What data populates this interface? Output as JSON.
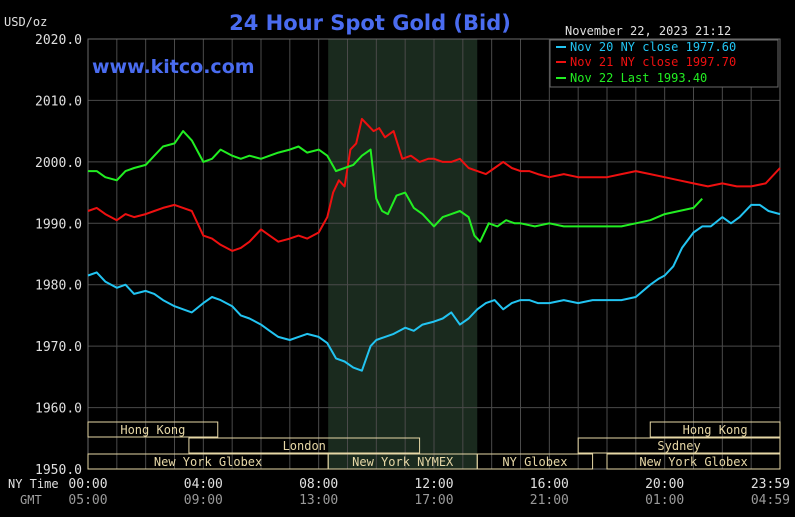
{
  "header": {
    "unit_label": "USD/oz",
    "title": "24 Hour Spot Gold (Bid)",
    "timestamp": "November 22, 2023 21:12",
    "watermark": "www.kitco.com"
  },
  "axis": {
    "nytime_label": "NY Time",
    "gmt_label": "GMT",
    "x_ticks": [
      {
        "x": 0,
        "ny": "00:00",
        "gmt": "05:00"
      },
      {
        "x": 4,
        "ny": "04:00",
        "gmt": "09:00"
      },
      {
        "x": 8,
        "ny": "08:00",
        "gmt": "13:00"
      },
      {
        "x": 12,
        "ny": "12:00",
        "gmt": "17:00"
      },
      {
        "x": 16,
        "ny": "16:00",
        "gmt": "21:00"
      },
      {
        "x": 20,
        "ny": "20:00",
        "gmt": "01:00"
      },
      {
        "x": 23.983,
        "ny": "23:59",
        "gmt": "04:59"
      }
    ],
    "y_ticks": [
      {
        "v": 1950,
        "label": "1950.0"
      },
      {
        "v": 1960,
        "label": "1960.0"
      },
      {
        "v": 1970,
        "label": "1970.0"
      },
      {
        "v": 1980,
        "label": "1980.0"
      },
      {
        "v": 1990,
        "label": "1990.0"
      },
      {
        "v": 2000,
        "label": "2000.0"
      },
      {
        "v": 2010,
        "label": "2010.0"
      },
      {
        "v": 2020,
        "label": "2020.0"
      }
    ]
  },
  "sessions": [
    {
      "label": "Hong Kong",
      "start": 0,
      "end": 4.5,
      "row": 0
    },
    {
      "label": "Hong Kong",
      "start": 19.5,
      "end": 24,
      "row": 0
    },
    {
      "label": "London",
      "start": 3.5,
      "end": 11.5,
      "row": 1
    },
    {
      "label": "Sydney",
      "start": 17.0,
      "end": 24,
      "row": 1
    },
    {
      "label": "New York Globex",
      "start": 0,
      "end": 8.33,
      "row": 2
    },
    {
      "label": "New York NYMEX",
      "start": 8.33,
      "end": 13.5,
      "row": 2
    },
    {
      "label": "NY Globex",
      "start": 13.5,
      "end": 17.5,
      "row": 2
    },
    {
      "label": "New York Globex",
      "start": 18.0,
      "end": 24,
      "row": 2
    }
  ],
  "colors": {
    "background": "#000000",
    "grid": "#4a4a4a",
    "shade": "#1a2a1e",
    "session_box": "#e6d7a6",
    "title": "#4a6cf0",
    "watermark": "#4a6cf0",
    "text": "#e0e0e0"
  },
  "chart_data": {
    "type": "line",
    "title": "24 Hour Spot Gold (Bid)",
    "ylabel": "USD/oz",
    "xlabel": "NY Time",
    "xlim": [
      0,
      24
    ],
    "ylim": [
      1950,
      2020
    ],
    "grid": true,
    "shaded_region": [
      8.33,
      13.5
    ],
    "legend_position": "top-right",
    "series": [
      {
        "name": "Nov 20 NY close 1977.60",
        "color": "#22c4f2",
        "x": [
          0,
          0.3,
          0.6,
          1.0,
          1.3,
          1.6,
          2.0,
          2.3,
          2.6,
          3.0,
          3.3,
          3.6,
          4.0,
          4.3,
          4.6,
          5.0,
          5.3,
          5.6,
          6.0,
          6.3,
          6.6,
          7.0,
          7.3,
          7.6,
          8.0,
          8.3,
          8.6,
          8.9,
          9.2,
          9.5,
          9.8,
          10.0,
          10.3,
          10.6,
          11.0,
          11.3,
          11.6,
          12.0,
          12.3,
          12.6,
          12.9,
          13.2,
          13.5,
          13.8,
          14.1,
          14.4,
          14.7,
          15.0,
          15.3,
          15.6,
          16.0,
          16.5,
          17.0,
          17.5,
          18.0,
          18.5,
          19.0,
          19.5,
          19.8,
          20.0,
          20.3,
          20.6,
          21.0,
          21.3,
          21.6,
          22.0,
          22.3,
          22.6,
          23.0,
          23.3,
          23.6,
          24.0
        ],
        "values": [
          1981.5,
          1982.0,
          1980.5,
          1979.5,
          1980.0,
          1978.5,
          1979.0,
          1978.5,
          1977.5,
          1976.5,
          1976.0,
          1975.5,
          1977.0,
          1978.0,
          1977.5,
          1976.5,
          1975.0,
          1974.5,
          1973.5,
          1972.5,
          1971.5,
          1971.0,
          1971.5,
          1972.0,
          1971.5,
          1970.5,
          1968.0,
          1967.5,
          1966.5,
          1966.0,
          1970.0,
          1971.0,
          1971.5,
          1972.0,
          1973.0,
          1972.5,
          1973.5,
          1974.0,
          1974.5,
          1975.5,
          1973.5,
          1974.5,
          1976.0,
          1977.0,
          1977.5,
          1976.0,
          1977.0,
          1977.5,
          1977.5,
          1977.0,
          1977.0,
          1977.5,
          1977.0,
          1977.5,
          1977.5,
          1977.5,
          1978.0,
          1980.0,
          1981.0,
          1981.5,
          1983.0,
          1986.0,
          1988.5,
          1989.5,
          1989.5,
          1991.0,
          1990.0,
          1991.0,
          1993.0,
          1993.0,
          1992.0,
          1991.5
        ]
      },
      {
        "name": "Nov 21 NY close 1997.70",
        "color": "#ee1010",
        "x": [
          0,
          0.3,
          0.6,
          1.0,
          1.3,
          1.6,
          2.0,
          2.3,
          2.6,
          3.0,
          3.3,
          3.6,
          4.0,
          4.3,
          4.6,
          5.0,
          5.3,
          5.6,
          6.0,
          6.3,
          6.6,
          7.0,
          7.3,
          7.6,
          8.0,
          8.3,
          8.5,
          8.7,
          8.9,
          9.1,
          9.3,
          9.5,
          9.7,
          9.9,
          10.1,
          10.3,
          10.6,
          10.9,
          11.2,
          11.5,
          11.8,
          12.0,
          12.3,
          12.6,
          12.9,
          13.2,
          13.5,
          13.8,
          14.1,
          14.4,
          14.7,
          15.0,
          15.3,
          15.6,
          16.0,
          16.5,
          17.0,
          17.5,
          18.0,
          18.5,
          19.0,
          19.5,
          20.0,
          20.5,
          21.0,
          21.5,
          22.0,
          22.5,
          23.0,
          23.5,
          24.0
        ],
        "values": [
          1992.0,
          1992.5,
          1991.5,
          1990.5,
          1991.5,
          1991.0,
          1991.5,
          1992.0,
          1992.5,
          1993.0,
          1992.5,
          1992.0,
          1988.0,
          1987.5,
          1986.5,
          1985.5,
          1986.0,
          1987.0,
          1989.0,
          1988.0,
          1987.0,
          1987.5,
          1988.0,
          1987.5,
          1988.5,
          1991.0,
          1995.0,
          1997.0,
          1996.0,
          2002.0,
          2003.0,
          2007.0,
          2006.0,
          2005.0,
          2005.5,
          2004.0,
          2005.0,
          2000.5,
          2001.0,
          2000.0,
          2000.5,
          2000.5,
          2000.0,
          2000.0,
          2000.5,
          1999.0,
          1998.5,
          1998.0,
          1999.0,
          2000.0,
          1999.0,
          1998.5,
          1998.5,
          1998.0,
          1997.5,
          1998.0,
          1997.5,
          1997.5,
          1997.5,
          1998.0,
          1998.5,
          1998.0,
          1997.5,
          1997.0,
          1996.5,
          1996.0,
          1996.5,
          1996.0,
          1996.0,
          1996.5,
          1999.0
        ]
      },
      {
        "name": "Nov 22 Last 1993.40",
        "color": "#22ee22",
        "x": [
          0,
          0.3,
          0.6,
          1.0,
          1.3,
          1.6,
          2.0,
          2.3,
          2.6,
          3.0,
          3.3,
          3.6,
          4.0,
          4.3,
          4.6,
          5.0,
          5.3,
          5.6,
          6.0,
          6.3,
          6.6,
          7.0,
          7.3,
          7.6,
          8.0,
          8.3,
          8.6,
          8.9,
          9.2,
          9.5,
          9.8,
          10.0,
          10.2,
          10.4,
          10.7,
          11.0,
          11.3,
          11.6,
          12.0,
          12.3,
          12.6,
          12.9,
          13.2,
          13.4,
          13.6,
          13.9,
          14.2,
          14.5,
          14.8,
          15.0,
          15.5,
          16.0,
          16.5,
          17.0,
          17.5,
          18.0,
          18.5,
          19.0,
          19.5,
          20.0,
          20.5,
          21.0,
          21.3
        ],
        "values": [
          1998.5,
          1998.5,
          1997.5,
          1997.0,
          1998.5,
          1999.0,
          1999.5,
          2001.0,
          2002.5,
          2003.0,
          2005.0,
          2003.5,
          2000.0,
          2000.5,
          2002.0,
          2001.0,
          2000.5,
          2001.0,
          2000.5,
          2001.0,
          2001.5,
          2002.0,
          2002.5,
          2001.5,
          2002.0,
          2001.0,
          1998.5,
          1999.0,
          1999.5,
          2001.0,
          2002.0,
          1994.0,
          1992.0,
          1991.5,
          1994.5,
          1995.0,
          1992.5,
          1991.5,
          1989.5,
          1991.0,
          1991.5,
          1992.0,
          1991.0,
          1988.0,
          1987.0,
          1990.0,
          1989.5,
          1990.5,
          1990.0,
          1990.0,
          1989.5,
          1990.0,
          1989.5,
          1989.5,
          1989.5,
          1989.5,
          1989.5,
          1990.0,
          1990.5,
          1991.5,
          1992.0,
          1992.5,
          1994.0
        ]
      }
    ]
  }
}
